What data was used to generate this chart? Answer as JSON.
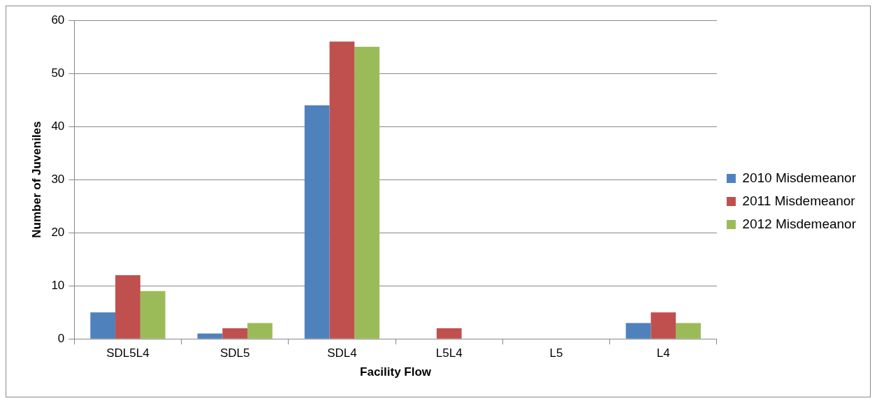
{
  "chart_data": {
    "type": "bar",
    "xlabel": "Facility Flow",
    "ylabel": "Number of Juveniles",
    "categories": [
      "SDL5L4",
      "SDL5",
      "SDL4",
      "L5L4",
      "L5",
      "L4"
    ],
    "series": [
      {
        "name": "2010 Misdemeanor",
        "color": "#4f81bd",
        "values": [
          5,
          1,
          44,
          0,
          0,
          3
        ]
      },
      {
        "name": "2011 Misdemeanor",
        "color": "#c0504d",
        "values": [
          12,
          2,
          56,
          2,
          0,
          5
        ]
      },
      {
        "name": "2012 Misdemeanor",
        "color": "#9bbb59",
        "values": [
          9,
          3,
          55,
          0,
          0,
          3
        ]
      }
    ],
    "ylim": [
      0,
      60
    ],
    "yticks": [
      0,
      10,
      20,
      30,
      40,
      50,
      60
    ],
    "grid": "y",
    "legend": "right"
  }
}
